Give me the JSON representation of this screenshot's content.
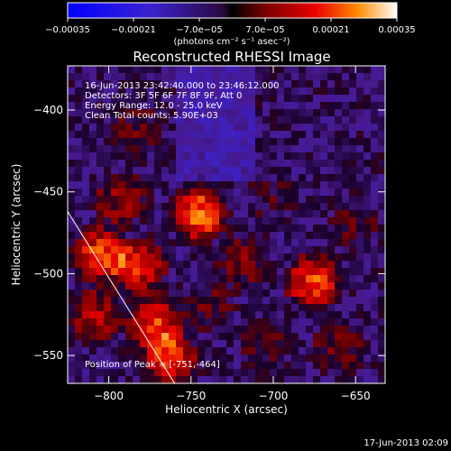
{
  "chart_data": {
    "type": "heatmap",
    "title": "Reconstructed RHESSI Image",
    "xlabel": "Heliocentric X (arcsec)",
    "ylabel": "Heliocentric Y (arcsec)",
    "xlim": [
      -825,
      -632
    ],
    "ylim": [
      -567,
      -373
    ],
    "x_ticks": [
      -800,
      -750,
      -700,
      -650
    ],
    "x_tick_labels": [
      "−800",
      "−750",
      "−700",
      "−650"
    ],
    "y_ticks": [
      -550,
      -500,
      -450,
      -400
    ],
    "y_tick_labels": [
      "−550",
      "−500",
      "−450",
      "−400"
    ],
    "colorbar": {
      "range": [
        -0.00035,
        0.00035
      ],
      "ticks": [
        -0.00035,
        -0.00021,
        -7e-05,
        7e-05,
        0.00021,
        0.00035
      ],
      "tick_labels": [
        "−0.00035",
        "−0.00021",
        "−7.0e−05",
        "7.0e−05",
        "0.00021",
        "0.00035"
      ],
      "unit_label": "(photons cm⁻² s⁻¹ asec⁻²)"
    },
    "info_lines": [
      "16-Jun-2013 23:42:40.000 to 23:46:12.000",
      "Detectors: 3F 5F 6F 7F 8F 9F, Att 0",
      "Energy Range: 12.0 - 25.0 keV",
      "Clean     Total counts: 5.90E+03"
    ],
    "peak_label": "Position of Peak = [-751,-464]",
    "peak_position": [
      -751,
      -464
    ],
    "limb_line": [
      [
        -825,
        -462
      ],
      [
        -760,
        -567
      ]
    ],
    "sources": [
      {
        "x": -745,
        "y": -463,
        "amp": 0.00035
      },
      {
        "x": -805,
        "y": -488,
        "amp": 0.0003
      },
      {
        "x": -782,
        "y": -496,
        "amp": 0.00026
      },
      {
        "x": -772,
        "y": -530,
        "amp": 0.00028
      },
      {
        "x": -763,
        "y": -552,
        "amp": 0.00029
      },
      {
        "x": -676,
        "y": -505,
        "amp": 0.0003
      },
      {
        "x": -808,
        "y": -525,
        "amp": 0.00018
      },
      {
        "x": -793,
        "y": -455,
        "amp": 0.00016
      },
      {
        "x": -719,
        "y": -493,
        "amp": 0.00012
      },
      {
        "x": -740,
        "y": -520,
        "amp": 0.0001
      },
      {
        "x": -784,
        "y": -412,
        "amp": 9e-05
      },
      {
        "x": -650,
        "y": -470,
        "amp": 9e-05
      },
      {
        "x": -660,
        "y": -545,
        "amp": 0.0001
      },
      {
        "x": -705,
        "y": -545,
        "amp": 9e-05
      },
      {
        "x": -700,
        "y": -455,
        "amp": 6e-05
      }
    ],
    "colors": {
      "background": "#000000",
      "text": "#ffffff"
    }
  },
  "footer": {
    "timestamp": "17-Jun-2013 02:09"
  }
}
